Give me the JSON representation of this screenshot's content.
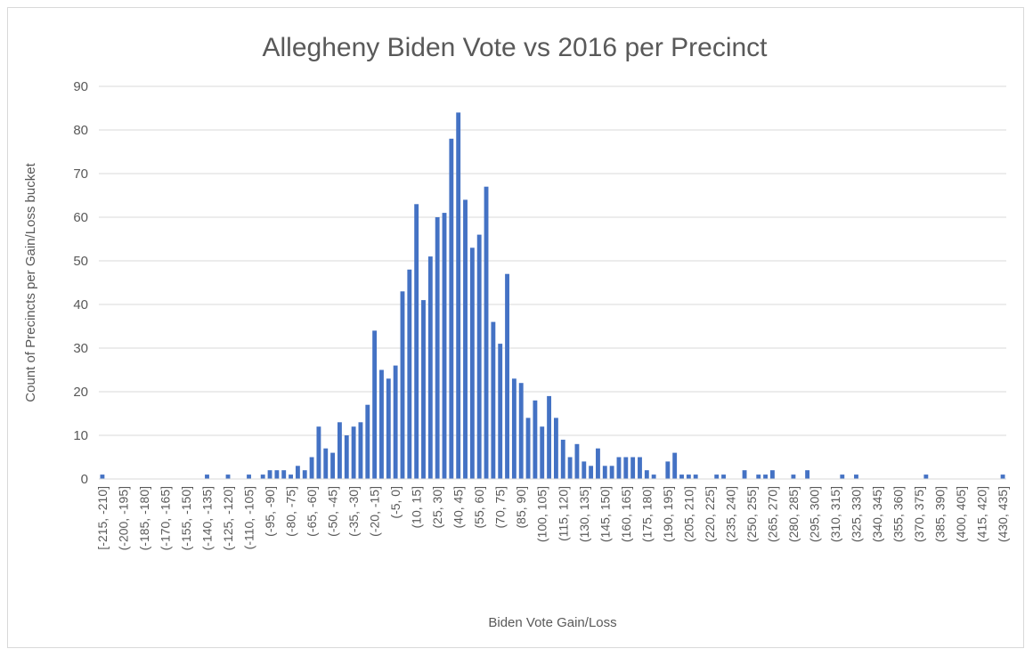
{
  "chart_data": {
    "type": "bar",
    "title": "Allegheny Biden Vote vs 2016 per Precinct",
    "xlabel": "Biden Vote Gain/Loss",
    "ylabel": "Count of Precincts per Gain/Loss bucket",
    "ylim": [
      0,
      90
    ],
    "yticks": [
      0,
      10,
      20,
      30,
      40,
      50,
      60,
      70,
      80,
      90
    ],
    "grid": true,
    "legend": "none",
    "bar_color": "#4472c4",
    "categories": [
      "[-215, -210]",
      "(-210, -205]",
      "(-205, -200]",
      "(-200, -195]",
      "(-195, -190]",
      "(-190, -185]",
      "(-185, -180]",
      "(-180, -175]",
      "(-175, -170]",
      "(-170, -165]",
      "(-165, -160]",
      "(-160, -155]",
      "(-155, -150]",
      "(-150, -145]",
      "(-145, -140]",
      "(-140, -135]",
      "(-135, -130]",
      "(-130, -125]",
      "(-125, -120]",
      "(-120, -115]",
      "(-115, -110]",
      "(-110, -105]",
      "(-105, -100]",
      "(-100, -95]",
      "(-95, -90]",
      "(-90, -85]",
      "(-85, -80]",
      "(-80, -75]",
      "(-75, -70]",
      "(-70, -65]",
      "(-65, -60]",
      "(-60, -55]",
      "(-55, -50]",
      "(-50, -45]",
      "(-45, -40]",
      "(-40, -35]",
      "(-35, -30]",
      "(-30, -25]",
      "(-25, -20]",
      "(-20, -15]",
      "(-15, -10]",
      "(-10, -5]",
      "(-5, 0]",
      "(0, 5]",
      "(5, 10]",
      "(10, 15]",
      "(15, 20]",
      "(20, 25]",
      "(25, 30]",
      "(30, 35]",
      "(35, 40]",
      "(40, 45]",
      "(45, 50]",
      "(50, 55]",
      "(55, 60]",
      "(60, 65]",
      "(65, 70]",
      "(70, 75]",
      "(75, 80]",
      "(80, 85]",
      "(85, 90]",
      "(90, 95]",
      "(95, 100]",
      "(100, 105]",
      "(105, 110]",
      "(110, 115]",
      "(115, 120]",
      "(120, 125]",
      "(125, 130]",
      "(130, 135]",
      "(135, 140]",
      "(140, 145]",
      "(145, 150]",
      "(150, 155]",
      "(155, 160]",
      "(160, 165]",
      "(165, 170]",
      "(170, 175]",
      "(175, 180]",
      "(180, 185]",
      "(185, 190]",
      "(190, 195]",
      "(195, 200]",
      "(200, 205]",
      "(205, 210]",
      "(210, 215]",
      "(215, 220]",
      "(220, 225]",
      "(225, 230]",
      "(230, 235]",
      "(235, 240]",
      "(240, 245]",
      "(245, 250]",
      "(250, 255]",
      "(255, 260]",
      "(260, 265]",
      "(265, 270]",
      "(270, 275]",
      "(275, 280]",
      "(280, 285]",
      "(285, 290]",
      "(290, 295]",
      "(295, 300]",
      "(300, 305]",
      "(305, 310]",
      "(310, 315]",
      "(315, 320]",
      "(320, 325]",
      "(325, 330]",
      "(330, 335]",
      "(335, 340]",
      "(340, 345]",
      "(345, 350]",
      "(350, 355]",
      "(355, 360]",
      "(360, 365]",
      "(365, 370]",
      "(370, 375]",
      "(375, 380]",
      "(380, 385]",
      "(385, 390]",
      "(390, 395]",
      "(395, 400]",
      "(400, 405]",
      "(405, 410]",
      "(410, 415]",
      "(415, 420]",
      "(420, 425]",
      "(425, 430]",
      "(430, 435]"
    ],
    "values": [
      1,
      0,
      0,
      0,
      0,
      0,
      0,
      0,
      0,
      0,
      0,
      0,
      0,
      0,
      0,
      1,
      0,
      0,
      1,
      0,
      0,
      1,
      0,
      1,
      2,
      2,
      2,
      1,
      3,
      2,
      5,
      12,
      7,
      6,
      13,
      10,
      12,
      13,
      17,
      34,
      25,
      23,
      26,
      43,
      48,
      63,
      41,
      51,
      60,
      61,
      78,
      84,
      64,
      53,
      56,
      67,
      36,
      31,
      47,
      23,
      22,
      14,
      18,
      12,
      19,
      14,
      9,
      5,
      8,
      4,
      3,
      7,
      3,
      3,
      5,
      5,
      5,
      5,
      2,
      1,
      0,
      4,
      6,
      1,
      1,
      1,
      0,
      0,
      1,
      1,
      0,
      0,
      2,
      0,
      1,
      1,
      2,
      0,
      0,
      1,
      0,
      2,
      0,
      0,
      0,
      0,
      1,
      0,
      1,
      0,
      0,
      0,
      0,
      0,
      0,
      0,
      0,
      0,
      1,
      0,
      0,
      0,
      0,
      0,
      0,
      0,
      0,
      0,
      0,
      1
    ]
  }
}
